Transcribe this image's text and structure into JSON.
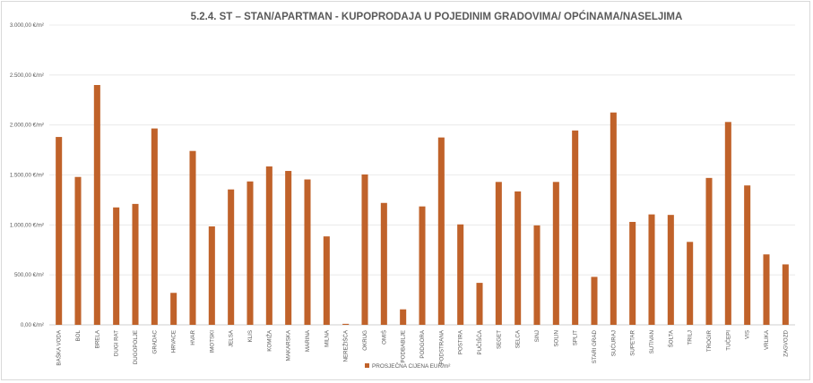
{
  "chart_data": {
    "type": "bar",
    "title": "5.2.4. ST – STAN/APARTMAN - KUPOPRODAJA U POJEDINIM GRADOVIMA/ OPĆINAMA/NASELJIMA",
    "xlabel": "",
    "ylabel": "",
    "ylim": [
      0,
      3000
    ],
    "y_ticks": [
      "0,00 €/m²",
      "500,00 €/m²",
      "1.000,00 €/m²",
      "1.500,00 €/m²",
      "2.000,00 €/m²",
      "2.500,00 €/m²",
      "3.000,00 €/m²"
    ],
    "grid": true,
    "legend_position": "bottom",
    "bar_color": "#c0622a",
    "categories": [
      "BAŠKA VODA",
      "BOL",
      "BRELA",
      "DUGI RAT",
      "DUGOPOLJE",
      "GRADAC",
      "HRVACE",
      "HVAR",
      "IMOTSKI",
      "JELSA",
      "KLIS",
      "KOMIŽA",
      "MAKARSKA",
      "MARINA",
      "MILNA",
      "NEREŽIŠĆA",
      "OKRUG",
      "OMIŠ",
      "PODBABLJE",
      "PODGORA",
      "PODSTRANA",
      "POSTIRA",
      "PUČIŠĆA",
      "SEGET",
      "SELCA",
      "SINJ",
      "SOLIN",
      "SPLIT",
      "STARI GRAD",
      "SUĆURAJ",
      "SUPETAR",
      "SUTIVAN",
      "ŠOLTA",
      "TRILJ",
      "TROGIR",
      "TUČEPI",
      "VIS",
      "VRLIKA",
      "ZAGVOZD"
    ],
    "series": [
      {
        "name": "PROSJEČNA CIJENA EUR/m²",
        "values": [
          1880,
          1480,
          2400,
          1175,
          1210,
          1965,
          320,
          1740,
          985,
          1355,
          1435,
          1585,
          1540,
          1455,
          885,
          10,
          1505,
          1220,
          155,
          1185,
          1875,
          1005,
          420,
          1430,
          1335,
          995,
          1430,
          1945,
          480,
          2125,
          1030,
          1105,
          1100,
          830,
          1470,
          2030,
          1395,
          705,
          605
        ]
      }
    ]
  }
}
